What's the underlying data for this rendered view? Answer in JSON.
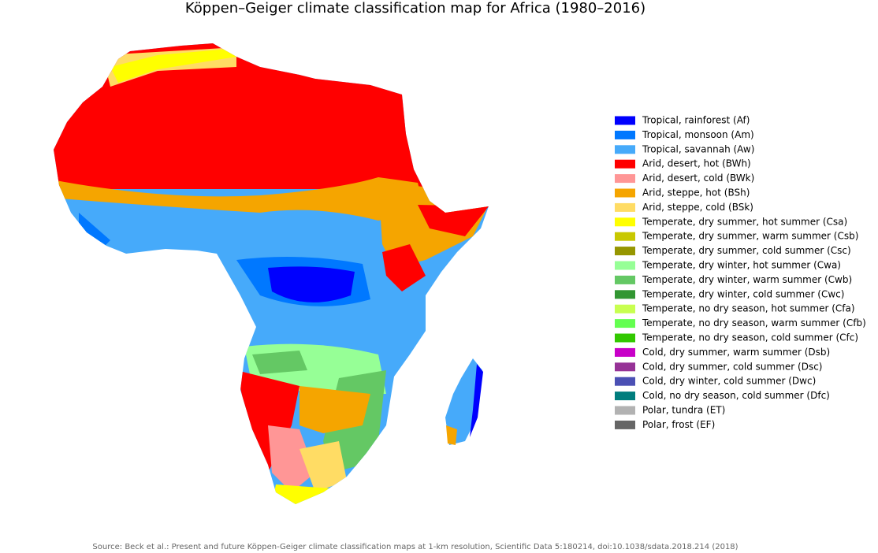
{
  "title": "Köppen–Geiger climate classification map for Africa (1980–2016)",
  "legend": {
    "items": [
      {
        "label": "Tropical, rainforest (Af)",
        "color": "#0000fe"
      },
      {
        "label": "Tropical, monsoon (Am)",
        "color": "#0078ff"
      },
      {
        "label": "Tropical, savannah (Aw)",
        "color": "#46aafa"
      },
      {
        "label": "Arid, desert, hot (BWh)",
        "color": "#ff0000"
      },
      {
        "label": "Arid, desert, cold (BWk)",
        "color": "#ff9696"
      },
      {
        "label": "Arid, steppe, hot (BSh)",
        "color": "#f5a500"
      },
      {
        "label": "Arid, steppe, cold (BSk)",
        "color": "#ffdc64"
      },
      {
        "label": "Temperate, dry summer, hot summer (Csa)",
        "color": "#ffff00"
      },
      {
        "label": "Temperate, dry summer, warm summer (Csb)",
        "color": "#c8c800"
      },
      {
        "label": "Temperate, dry summer, cold summer (Csc)",
        "color": "#969600"
      },
      {
        "label": "Temperate, dry winter, hot summer (Cwa)",
        "color": "#96ff96"
      },
      {
        "label": "Temperate, dry winter, warm summer (Cwb)",
        "color": "#64c864"
      },
      {
        "label": "Temperate, dry winter, cold summer (Cwc)",
        "color": "#329632"
      },
      {
        "label": "Temperate, no dry season, hot summer (Cfa)",
        "color": "#c8ff50"
      },
      {
        "label": "Temperate, no dry season, warm summer (Cfb)",
        "color": "#64ff50"
      },
      {
        "label": "Temperate, no dry season, cold summer (Cfc)",
        "color": "#32c800"
      },
      {
        "label": "Cold, dry summer, warm summer (Dsb)",
        "color": "#c800c8"
      },
      {
        "label": "Cold, dry summer, cold summer (Dsc)",
        "color": "#963296"
      },
      {
        "label": "Cold, dry winter, cold summer (Dwc)",
        "color": "#4b50b4"
      },
      {
        "label": "Cold, no dry season, cold summer (Dfc)",
        "color": "#007d7d"
      },
      {
        "label": "Polar, tundra (ET)",
        "color": "#b2b2b2"
      },
      {
        "label": "Polar, frost (EF)",
        "color": "#666666"
      }
    ]
  },
  "source": "Source: Beck et al.: Present and future Köppen-Geiger climate classification maps at 1-km resolution, Scientific Data 5:180214, doi:10.1038/sdata.2018.214 (2018)"
}
